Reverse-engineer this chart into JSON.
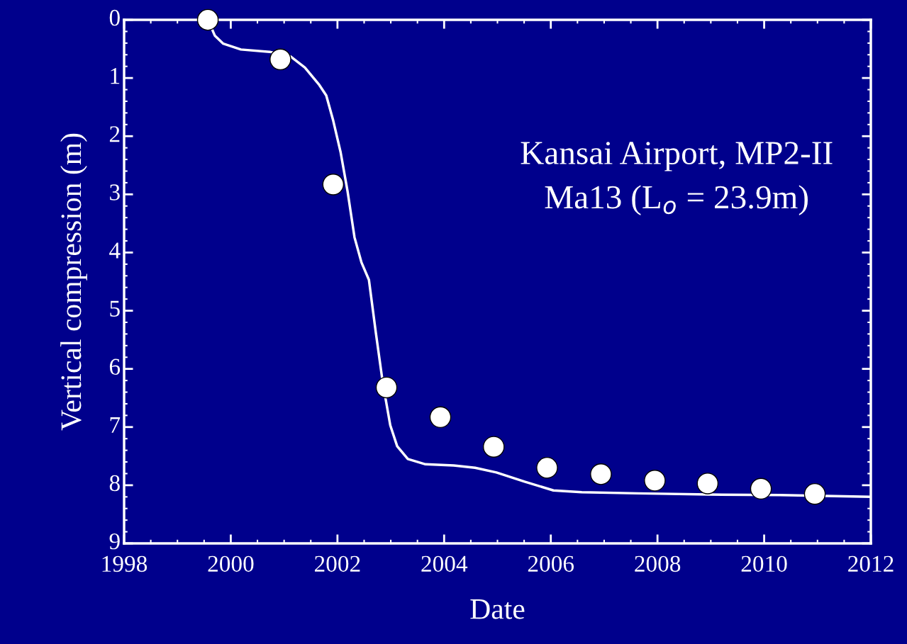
{
  "chart_data": {
    "type": "line",
    "xlabel": "Date",
    "ylabel": "Vertical compression (m)",
    "annotations": [
      "Kansai Airport, MP2-II",
      "Ma13 (L$_{o}$ = 23.9m)"
    ],
    "series": [
      {
        "color": "#ffffff",
        "marker": "none",
        "line_style": "solid",
        "x": [
          1999.62,
          1999.7,
          1999.86,
          2000.19,
          2000.73,
          2001.12,
          2001.39,
          2001.66,
          2001.79,
          2001.92,
          2002.06,
          2002.19,
          2002.32,
          2002.45,
          2002.59,
          2002.72,
          2002.85,
          2002.99,
          2003.12,
          2003.32,
          2003.65,
          2004.18,
          2004.58,
          2004.98,
          2005.51,
          2006.05,
          2006.58,
          2007.64,
          2008.97,
          2010.3,
          2012.0
        ],
        "values": [
          0.1,
          0.27,
          0.41,
          0.51,
          0.55,
          0.63,
          0.82,
          1.12,
          1.3,
          1.73,
          2.28,
          2.95,
          3.74,
          4.17,
          4.47,
          5.38,
          6.24,
          6.97,
          7.33,
          7.55,
          7.64,
          7.66,
          7.7,
          7.78,
          7.94,
          8.09,
          8.12,
          8.14,
          8.16,
          8.17,
          8.2
        ]
      },
      {
        "type": "scatter",
        "color": "#ffffff",
        "marker": "circle",
        "x": [
          1999.57,
          2000.93,
          2001.92,
          2002.92,
          2003.93,
          2004.93,
          2005.93,
          2006.94,
          2007.95,
          2008.94,
          2009.94,
          2010.95
        ],
        "values": [
          0.0,
          0.68,
          2.83,
          6.32,
          6.83,
          7.34,
          7.7,
          7.81,
          7.92,
          7.97,
          8.06,
          8.15
        ]
      }
    ],
    "xlim": [
      1998,
      2012
    ],
    "xticks": [
      1998,
      2000,
      2002,
      2004,
      2006,
      2008,
      2010,
      2012
    ],
    "ylim": [
      9,
      0
    ],
    "yticks": [
      0,
      1,
      2,
      3,
      4,
      5,
      6,
      7,
      8,
      9
    ],
    "grid": false,
    "legend": false
  }
}
